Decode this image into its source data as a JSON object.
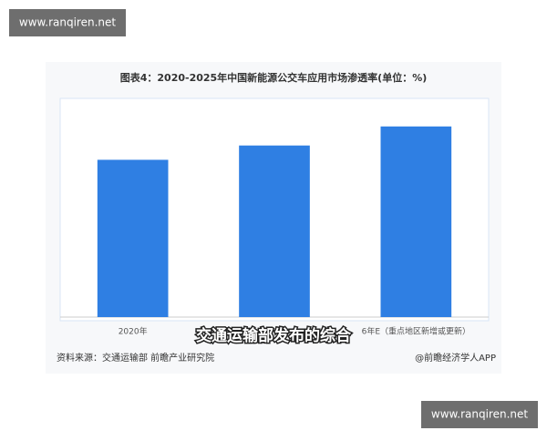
{
  "chart_data": {
    "type": "bar",
    "title": "图表4：2020-2025年中国新能源公交车应用市场渗透率(单位：%)",
    "categories": [
      "2020年",
      null,
      "6年E（重点地区新增或更新）"
    ],
    "values": [
      66,
      72,
      80
    ],
    "color": "#2f7fe3",
    "ylim": [
      0,
      91
    ]
  },
  "caption": "交通运输部发布的综合",
  "source": "资料来源：交通运输部 前瞻产业研究院",
  "credit": "@前瞻经济学人APP",
  "watermarks": [
    "www.ranqiren.net",
    "www.ranqiren.net"
  ]
}
